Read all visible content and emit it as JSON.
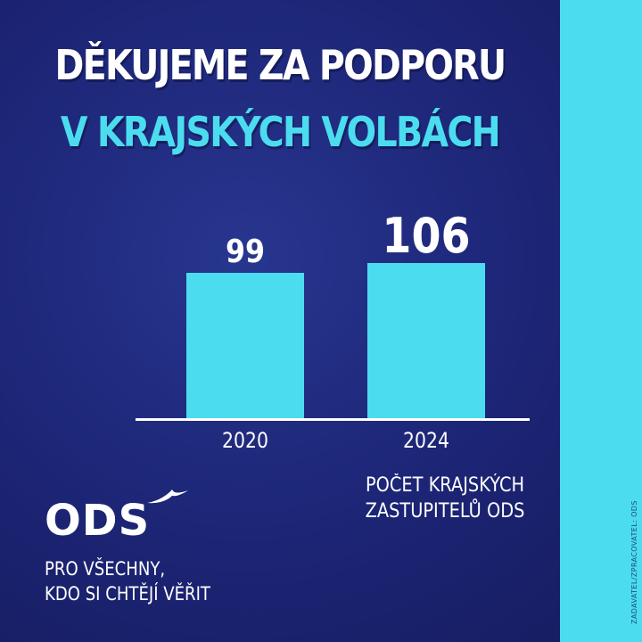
{
  "headline": {
    "line1": "DĚKUJEME ZA PODPORU",
    "line2": "V KRAJSKÝCH VOLBÁCH"
  },
  "chart_data": {
    "type": "bar",
    "categories": [
      "2020",
      "2024"
    ],
    "values": [
      99,
      106
    ],
    "data_labels": [
      "99",
      "106"
    ],
    "title": "",
    "xlabel": "",
    "ylabel": "",
    "caption": "POČET KRAJSKÝCH ZASTUPITELŮ ODS",
    "ylim": [
      0,
      120
    ],
    "grid": false,
    "legend": "none",
    "bar_color": "#4cdcf0"
  },
  "caption": {
    "line1": "POČET KRAJSKÝCH",
    "line2": "ZASTUPITELŮ ODS"
  },
  "logo": {
    "text": "ODS",
    "icon": "bird-icon"
  },
  "slogan": {
    "line1": "PRO VŠECHNY,",
    "line2": "KDO SI CHTĚJÍ VĚŘIT"
  },
  "disclaimer": "ZADAVATEL/ZPRACOVATEL: ODS",
  "colors": {
    "background": "#1c2474",
    "accent": "#4cdcf0",
    "text": "#ffffff"
  }
}
